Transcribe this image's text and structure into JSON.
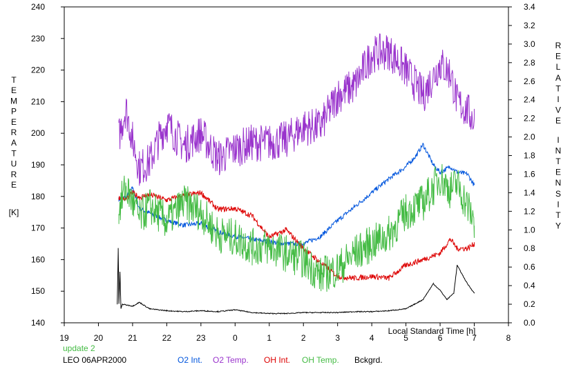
{
  "chart_data": {
    "type": "line",
    "xlabel": "Local Standard Time [h]",
    "ylabel_left_letters": [
      "T",
      "E",
      "M",
      "P",
      "E",
      "R",
      "A",
      "T",
      "U",
      "R",
      "E"
    ],
    "ylabel_left_unit": "[K]",
    "ylabel_right_words": [
      [
        "R",
        "E",
        "L",
        "A",
        "T",
        "I",
        "V",
        "E"
      ],
      [
        "I",
        "N",
        "T",
        "E",
        "N",
        "S",
        "I",
        "T",
        "Y"
      ]
    ],
    "x_tick_labels": [
      "19",
      "20",
      "21",
      "22",
      "23",
      "0",
      "1",
      "2",
      "3",
      "4",
      "5",
      "6",
      "7",
      "8"
    ],
    "x_range_hours": [
      19,
      32
    ],
    "y_left_ticks": [
      "140",
      "150",
      "160",
      "170",
      "180",
      "190",
      "200",
      "210",
      "220",
      "230",
      "240"
    ],
    "y_left_range": [
      140,
      240
    ],
    "y_right_ticks": [
      "0.0",
      "0.2",
      "0.4",
      "0.6",
      "0.8",
      "1.0",
      "1.2",
      "1.4",
      "1.6",
      "1.8",
      "2.0",
      "2.2",
      "2.4",
      "2.6",
      "2.8",
      "3.0",
      "3.2",
      "3.4"
    ],
    "y_right_range": [
      0.0,
      3.4
    ],
    "info_line1": "update 2",
    "info_line2": "LEO 06APR2000",
    "series": [
      {
        "name": "O2 Int.",
        "color": "#0055dd",
        "axis": "right",
        "x": [
          20.6,
          20.8,
          21.0,
          21.2,
          21.5,
          22.0,
          22.5,
          23.0,
          23.5,
          24.0,
          24.5,
          25.0,
          25.5,
          26.0,
          26.5,
          27.0,
          27.5,
          28.0,
          28.5,
          29.0,
          29.3,
          29.5,
          29.8,
          30.0,
          30.3,
          30.5,
          30.8,
          31.0
        ],
        "y": [
          1.33,
          1.35,
          1.45,
          1.23,
          1.18,
          1.1,
          1.05,
          1.07,
          0.98,
          0.93,
          0.9,
          0.87,
          0.85,
          0.85,
          0.93,
          1.1,
          1.25,
          1.4,
          1.55,
          1.68,
          1.8,
          1.92,
          1.7,
          1.62,
          1.68,
          1.62,
          1.6,
          1.48
        ]
      },
      {
        "name": "O2 Temp.",
        "color": "#9933cc",
        "axis": "left",
        "x": [
          20.6,
          20.8,
          21.0,
          21.2,
          21.5,
          21.8,
          22.0,
          22.5,
          23.0,
          23.5,
          24.0,
          24.5,
          25.0,
          25.5,
          26.0,
          26.5,
          27.0,
          27.5,
          28.0,
          28.5,
          29.0,
          29.5,
          30.0,
          30.3,
          30.5,
          30.8,
          31.0
        ],
        "y": [
          199,
          208,
          198,
          189,
          191,
          199,
          203,
          196,
          200,
          192,
          195,
          197,
          197,
          198,
          202,
          202,
          212,
          215,
          225,
          226,
          220,
          212,
          222,
          219,
          210,
          207,
          204
        ]
      },
      {
        "name": "OH Int.",
        "color": "#dd0000",
        "axis": "right",
        "x": [
          20.6,
          20.8,
          21.0,
          21.2,
          21.5,
          22.0,
          22.5,
          23.0,
          23.5,
          24.0,
          24.5,
          25.0,
          25.5,
          26.0,
          26.5,
          27.0,
          27.5,
          28.0,
          28.5,
          29.0,
          29.5,
          30.0,
          30.3,
          30.5,
          30.8,
          31.0
        ],
        "y": [
          1.35,
          1.33,
          1.4,
          1.35,
          1.38,
          1.32,
          1.37,
          1.4,
          1.22,
          1.23,
          1.15,
          0.92,
          1.0,
          0.8,
          0.65,
          0.5,
          0.48,
          0.5,
          0.48,
          0.62,
          0.68,
          0.75,
          0.9,
          0.8,
          0.8,
          0.85
        ]
      },
      {
        "name": "OH Temp.",
        "color": "#44bb44",
        "axis": "left",
        "x": [
          20.6,
          20.8,
          21.0,
          21.2,
          21.5,
          22.0,
          22.5,
          23.0,
          23.5,
          24.0,
          24.5,
          25.0,
          25.5,
          26.0,
          26.5,
          27.0,
          27.5,
          28.0,
          28.5,
          29.0,
          29.5,
          30.0,
          30.3,
          30.5,
          30.8,
          31.0
        ],
        "y": [
          176,
          183,
          178,
          173,
          177,
          172,
          178,
          175,
          168,
          167,
          164,
          164,
          162,
          160,
          155,
          157,
          162,
          165,
          168,
          175,
          178,
          186,
          182,
          184,
          177,
          172
        ]
      },
      {
        "name": "Bckgrd.",
        "color": "#000000",
        "axis": "right",
        "x": [
          20.55,
          20.58,
          20.6,
          20.63,
          20.66,
          20.7,
          21.0,
          21.2,
          21.5,
          22.0,
          22.5,
          23.0,
          23.5,
          24.0,
          24.5,
          25.0,
          25.5,
          26.0,
          26.5,
          27.0,
          27.5,
          28.0,
          28.5,
          29.0,
          29.5,
          29.8,
          30.0,
          30.2,
          30.4,
          30.5,
          30.6,
          30.8,
          31.0
        ],
        "y": [
          0.2,
          0.8,
          0.2,
          0.55,
          0.15,
          0.2,
          0.18,
          0.22,
          0.15,
          0.13,
          0.12,
          0.13,
          0.12,
          0.14,
          0.11,
          0.1,
          0.1,
          0.11,
          0.11,
          0.11,
          0.12,
          0.12,
          0.13,
          0.15,
          0.25,
          0.42,
          0.35,
          0.25,
          0.32,
          0.62,
          0.55,
          0.42,
          0.32
        ]
      }
    ]
  }
}
